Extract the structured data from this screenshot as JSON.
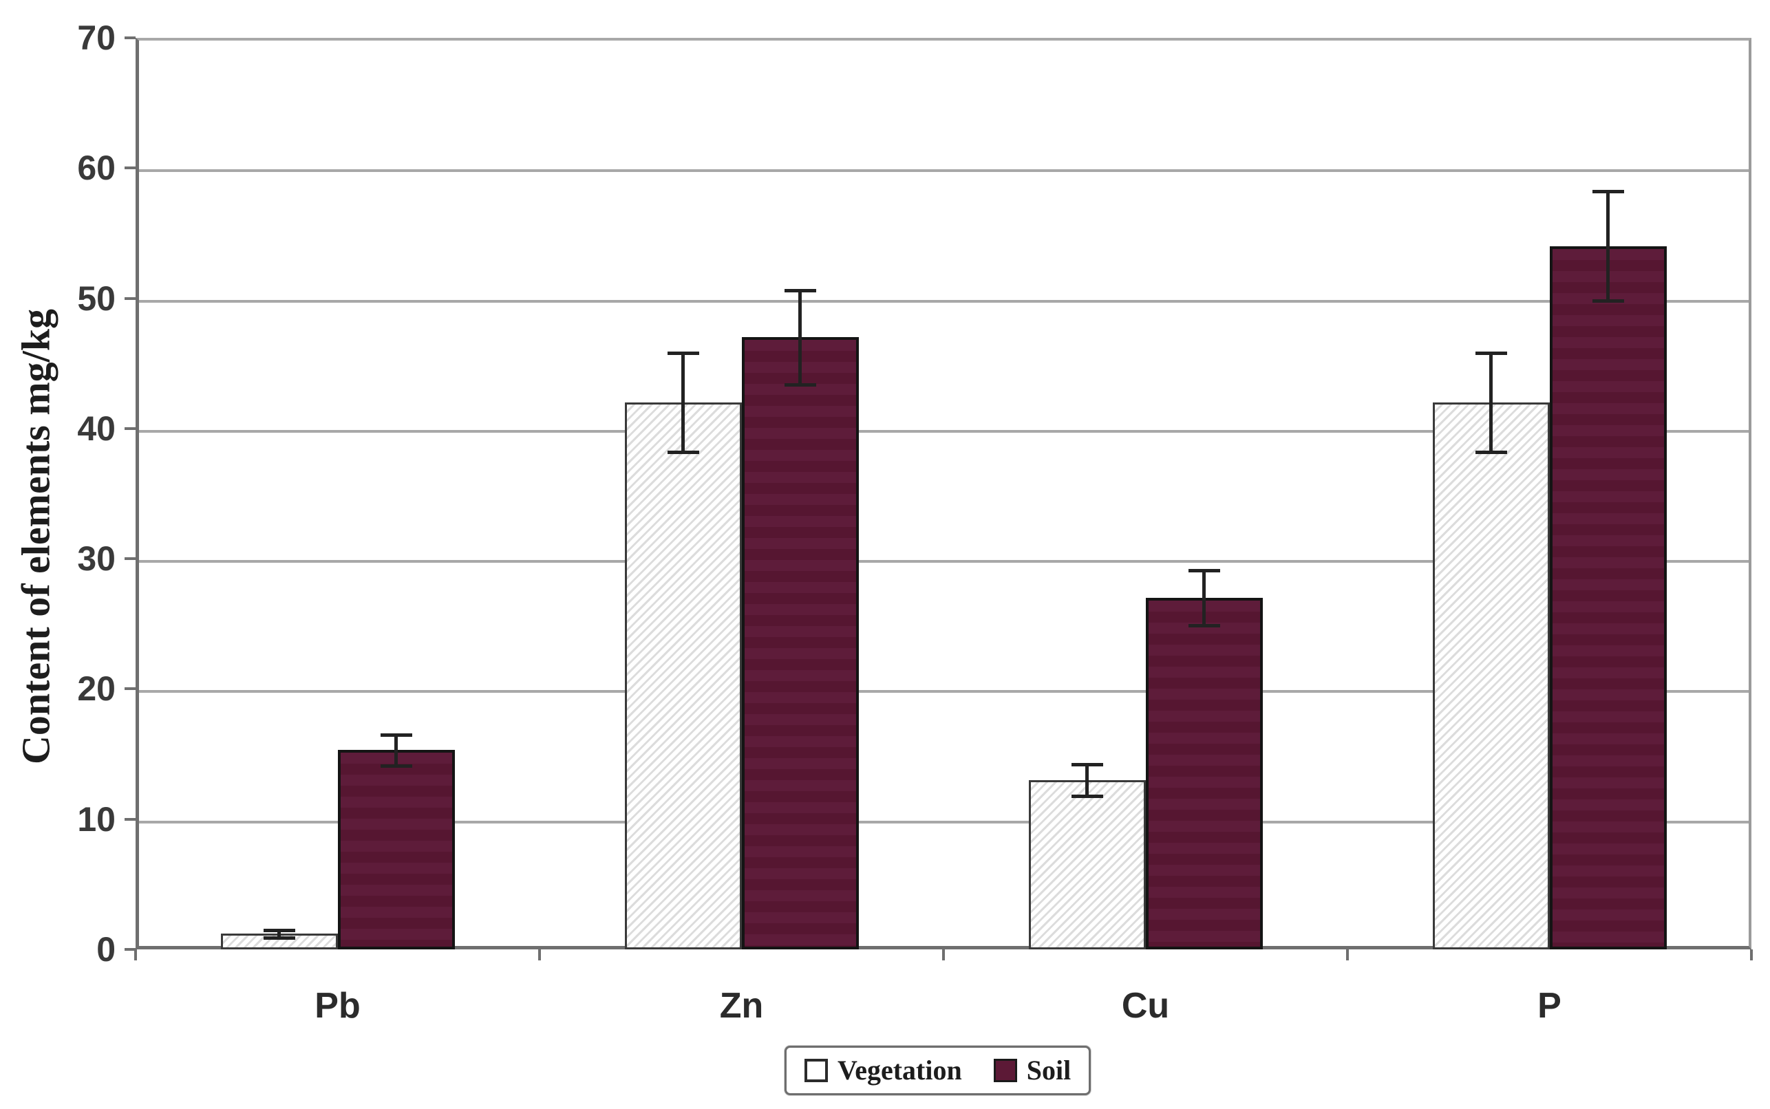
{
  "chart_data": {
    "type": "bar",
    "title": "",
    "xlabel": "",
    "ylabel": "Content of elements mg/kg",
    "ylim": [
      0,
      70
    ],
    "yticks": [
      "0",
      "10",
      "20",
      "30",
      "40",
      "50",
      "60",
      "70"
    ],
    "grid": true,
    "legend_position": "bottom-center",
    "categories": [
      "Pb",
      "Zn",
      "Cu",
      "P"
    ],
    "series": [
      {
        "name": "Vegetation",
        "values": [
          1.2,
          42,
          13,
          42
        ],
        "errors": [
          0.3,
          3.8,
          1.2,
          3.8
        ],
        "fill": "white-diagonal-hatch",
        "color": "#ffffff",
        "hatch_color": "#dcdcdc"
      },
      {
        "name": "Soil",
        "values": [
          15.3,
          47,
          27,
          54
        ],
        "errors": [
          1.2,
          3.6,
          2.1,
          4.2
        ],
        "fill": "solid",
        "color": "#5c1936"
      }
    ],
    "colors": {
      "gridline": "#a8a8a8",
      "axis": "#6f6f6f",
      "error_bar": "#222222",
      "tick_text": "#3a3a3a",
      "label_text": "#1d1d1d"
    }
  }
}
